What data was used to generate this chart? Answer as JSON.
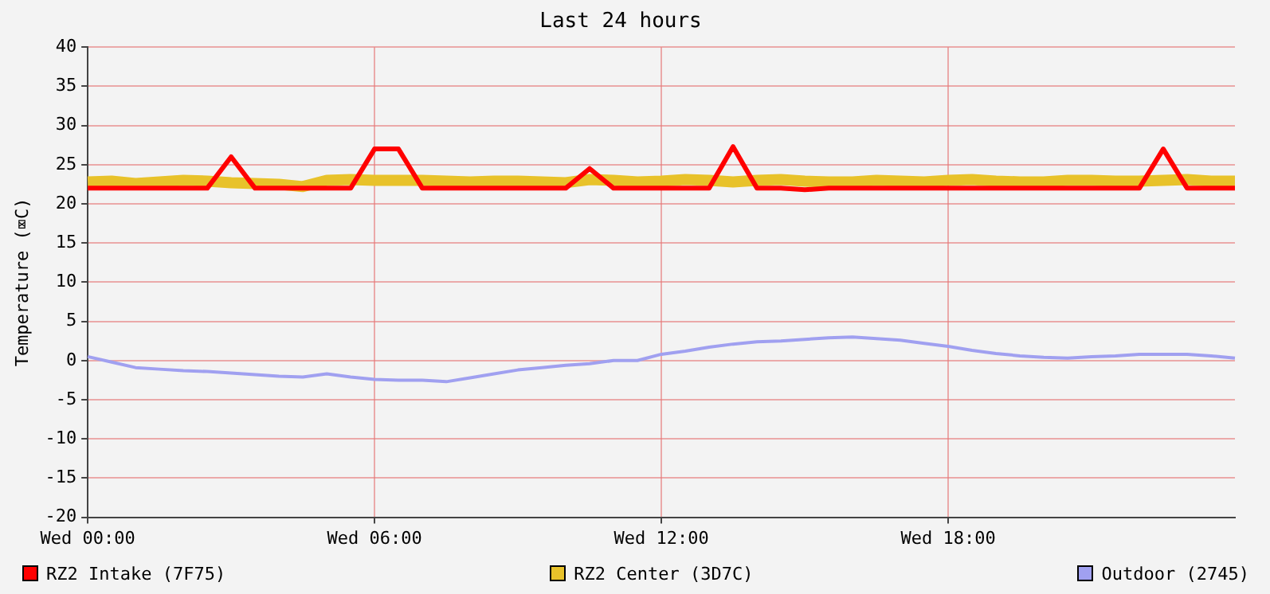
{
  "chart_data": {
    "type": "line",
    "title": "Last 24 hours",
    "ylabel": "Temperature (⌧C)",
    "categories": [
      "Wed 00:00",
      null,
      null,
      null,
      null,
      null,
      null,
      null,
      null,
      null,
      null,
      null,
      "Wed 06:00",
      null,
      null,
      null,
      null,
      null,
      null,
      null,
      null,
      null,
      null,
      null,
      "Wed 12:00",
      null,
      null,
      null,
      null,
      null,
      null,
      null,
      null,
      null,
      null,
      null,
      "Wed 18:00",
      null,
      null,
      null,
      null,
      null,
      null,
      null,
      null,
      null,
      null,
      null,
      null
    ],
    "ylim": [
      -20,
      40
    ],
    "yticks": [
      -20,
      -15,
      -10,
      -5,
      0,
      5,
      10,
      15,
      20,
      25,
      30,
      35,
      40
    ],
    "grid": true,
    "legend": "bottom",
    "marker": "none",
    "line_style": "solid",
    "series": [
      {
        "name": "RZ2 Intake (7F75)",
        "color": "#ff0000",
        "values": [
          22,
          22,
          22,
          22,
          22,
          22,
          26,
          22,
          22,
          22,
          22,
          22,
          27,
          27,
          22,
          22,
          22,
          22,
          22,
          22,
          22,
          24.5,
          22,
          22,
          22,
          22,
          22,
          27.3,
          22,
          22,
          21.8,
          22,
          22,
          22,
          22,
          22,
          22,
          22,
          22,
          22,
          22,
          22,
          22,
          22,
          22,
          27,
          22,
          22,
          22
        ]
      },
      {
        "name": "RZ2 Center (3D7C)",
        "color": "#e8c22a",
        "values": [
          22.8,
          22.9,
          22.6,
          22.8,
          23,
          22.9,
          22.7,
          22.6,
          22.5,
          22.2,
          23,
          23.1,
          23,
          23,
          23,
          22.9,
          22.8,
          22.9,
          22.9,
          22.8,
          22.7,
          23.1,
          23,
          22.8,
          22.9,
          23.1,
          23,
          22.8,
          23,
          23.1,
          22.9,
          22.8,
          22.8,
          23,
          22.9,
          22.8,
          23,
          23.1,
          22.9,
          22.8,
          22.8,
          23,
          23,
          22.9,
          22.9,
          23,
          23.1,
          22.9,
          22.9
        ]
      },
      {
        "name": "Outdoor (2745)",
        "color": "#a0a0f0",
        "values": [
          0.5,
          -0.2,
          -0.9,
          -1.1,
          -1.3,
          -1.4,
          -1.6,
          -1.8,
          -2,
          -2.1,
          -1.7,
          -2.1,
          -2.4,
          -2.5,
          -2.5,
          -2.7,
          -2.2,
          -1.7,
          -1.2,
          -0.9,
          -0.6,
          -0.4,
          0,
          0,
          0.8,
          1.2,
          1.7,
          2.1,
          2.4,
          2.5,
          2.7,
          2.9,
          3,
          2.8,
          2.6,
          2.2,
          1.8,
          1.3,
          0.9,
          0.6,
          0.4,
          0.3,
          0.5,
          0.6,
          0.8,
          0.8,
          0.8,
          0.6,
          0.3
        ]
      }
    ]
  }
}
